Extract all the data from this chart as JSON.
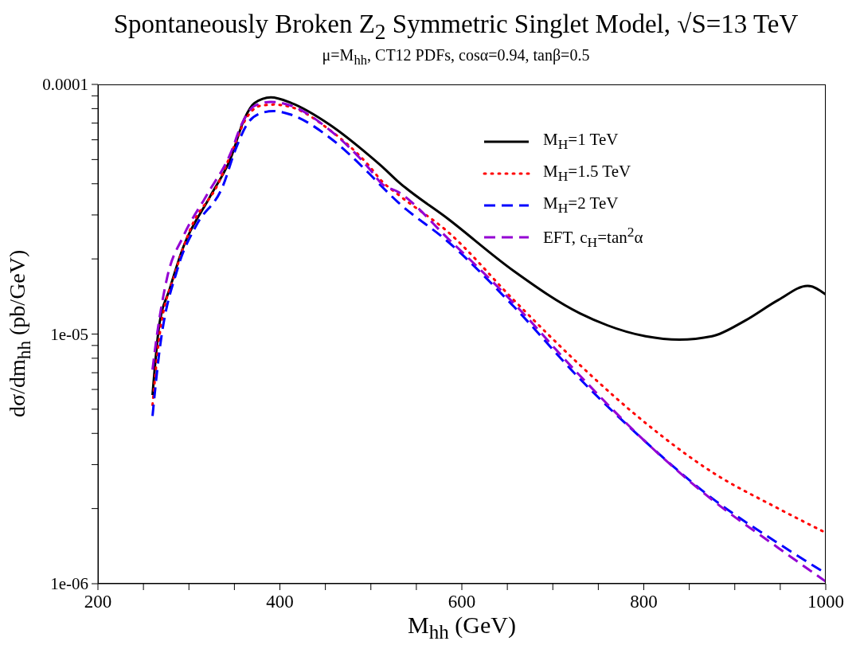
{
  "chart_data": {
    "type": "line",
    "title": "Spontaneously Broken Z$_{2}$ Symmetric Singlet Model, √S=13 TeV",
    "subtitle": "μ=M$_{hh}$, CT12 PDFs, cosα=0.94, tanβ=0.5",
    "xlabel": "M$_{hh}$ (GeV)",
    "ylabel": "dσ/dm$_{hh}$ (pb/GeV)",
    "log": "y",
    "grid": false,
    "legend": "top right",
    "marker": "none",
    "xlim": [
      200,
      1000
    ],
    "xticks": [
      200,
      {
        "value": 250,
        "label": null
      },
      {
        "value": 300,
        "label": null
      },
      {
        "value": 350,
        "label": null
      },
      400,
      {
        "value": 450,
        "label": null
      },
      {
        "value": 500,
        "label": null
      },
      {
        "value": 550,
        "label": null
      },
      600,
      {
        "value": 650,
        "label": null
      },
      {
        "value": 700,
        "label": null
      },
      {
        "value": 750,
        "label": null
      },
      800,
      {
        "value": 850,
        "label": null
      },
      {
        "value": 900,
        "label": null
      },
      {
        "value": 950,
        "label": null
      },
      1000
    ],
    "ylim": [
      1e-06,
      0.0001
    ],
    "yticks": [
      {
        "value": 1e-06,
        "label": "1e-06"
      },
      {
        "value": 2e-06,
        "label": null
      },
      {
        "value": 3e-06,
        "label": null
      },
      {
        "value": 4e-06,
        "label": null
      },
      {
        "value": 5e-06,
        "label": null
      },
      {
        "value": 6e-06,
        "label": null
      },
      {
        "value": 7e-06,
        "label": null
      },
      {
        "value": 8e-06,
        "label": null
      },
      {
        "value": 9e-06,
        "label": null
      },
      {
        "value": 1e-05,
        "label": "1e-05"
      },
      {
        "value": 2e-05,
        "label": null
      },
      {
        "value": 3e-05,
        "label": null
      },
      {
        "value": 4e-05,
        "label": null
      },
      {
        "value": 5e-05,
        "label": null
      },
      {
        "value": 6e-05,
        "label": null
      },
      {
        "value": 7e-05,
        "label": null
      },
      {
        "value": 8e-05,
        "label": null
      },
      {
        "value": 9e-05,
        "label": null
      },
      0.0001
    ],
    "series": [
      {
        "name": "M$_{H}$=1 TeV",
        "color": "#000000",
        "line_style": "solid",
        "x": [
          260,
          267,
          279,
          294,
          323,
          346,
          361,
          372,
          390,
          413,
          454,
          498,
          512,
          530,
          585,
          657,
          730,
          802,
          839,
          875,
          911,
          948,
          980,
          1000
        ],
        "values": [
          5.7e-06,
          1.06e-05,
          1.52e-05,
          2.24e-05,
          3.54e-05,
          5.07e-05,
          7.28e-05,
          8.41e-05,
          8.87e-05,
          8.41e-05,
          6.93e-05,
          5.2e-05,
          4.7e-05,
          4.08e-05,
          2.89e-05,
          1.79e-05,
          1.21e-05,
          9.8e-06,
          9.5e-06,
          9.8e-06,
          1.13e-05,
          1.37e-05,
          1.56e-05,
          1.44e-05
        ]
      },
      {
        "name": "M$_{H}$=1.5 TeV",
        "color": "#ff0000",
        "line_style": "dotted",
        "x": [
          260,
          267,
          285,
          302,
          332,
          349,
          361,
          378,
          393,
          413,
          454,
          498,
          512,
          530,
          585,
          657,
          730,
          802,
          875,
          948,
          1000
        ],
        "values": [
          5.2e-06,
          9.4e-06,
          1.76e-05,
          2.65e-05,
          3.99e-05,
          5.58e-05,
          7.1e-05,
          8.2e-05,
          8.3e-05,
          8.1e-05,
          6.6e-05,
          4.72e-05,
          4.1e-05,
          3.62e-05,
          2.56e-05,
          1.37e-05,
          7.5e-06,
          4.4e-06,
          2.8e-06,
          2e-06,
          1.6e-06
        ]
      },
      {
        "name": "M$_{H}$=2 TeV",
        "color": "#0000ff",
        "line_style": "dashed",
        "x": [
          260,
          267,
          288,
          308,
          337,
          352,
          364,
          378,
          393,
          413,
          454,
          498,
          512,
          530,
          585,
          657,
          730,
          802,
          875,
          948,
          1000
        ],
        "values": [
          4.7e-06,
          8.2e-06,
          1.85e-05,
          2.72e-05,
          3.89e-05,
          5.58e-05,
          6.93e-05,
          7.64e-05,
          7.82e-05,
          7.55e-05,
          6.15e-05,
          4.4e-05,
          3.9e-05,
          3.37e-05,
          2.34e-05,
          1.29e-05,
          6.6e-06,
          3.7e-06,
          2.2e-06,
          1.45e-06,
          1.1e-06
        ]
      },
      {
        "name": "EFT, c$_{H}$=tan$^{2}$α",
        "color": "#9400d3",
        "line_style": "dashed",
        "x": [
          260,
          264,
          276,
          294,
          320,
          346,
          358,
          372,
          390,
          413,
          454,
          498,
          512,
          530,
          585,
          657,
          730,
          802,
          875,
          948,
          1000
        ],
        "values": [
          7.2e-06,
          9.4e-06,
          1.68e-05,
          2.47e-05,
          3.62e-05,
          5.32e-05,
          6.93e-05,
          8.2e-05,
          8.51e-05,
          8.2e-05,
          6.6e-05,
          4.61e-05,
          4e-05,
          3.71e-05,
          2.41e-05,
          1.33e-05,
          6.8e-06,
          3.7e-06,
          2.17e-06,
          1.39e-06,
          1.02e-06
        ]
      }
    ]
  }
}
